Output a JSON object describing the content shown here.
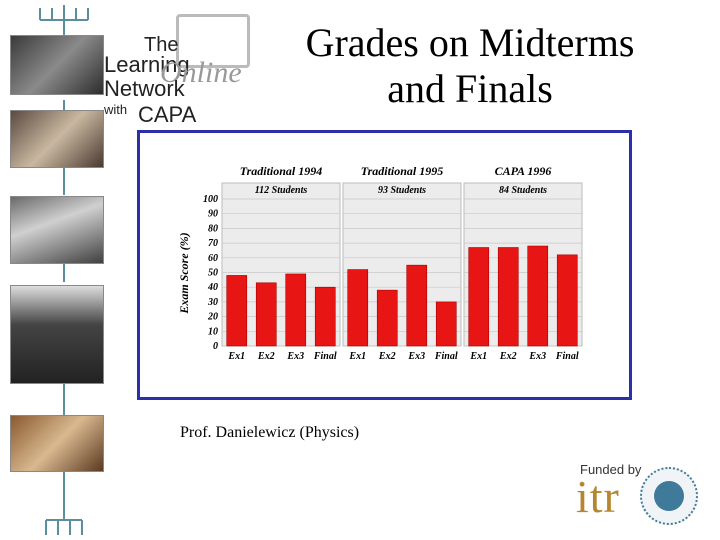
{
  "slide": {
    "title_line1": "Grades on Midterms",
    "title_line2": "and Finals",
    "caption": "Prof. Danielewicz (Physics)"
  },
  "logo": {
    "the": "The",
    "learning": "Learning",
    "online": "Online",
    "network": "Network",
    "with": "with",
    "capa": "CAPA"
  },
  "funder": {
    "funded_by": "Funded by",
    "itr": "itr",
    "nsf_ring": "NATIONAL SCIENCE FOUNDATION"
  },
  "colors": {
    "bar": "#e81515",
    "panel": "#ececec",
    "border": "#2b2fa8",
    "accent": "#b5862f"
  },
  "chart_data": {
    "type": "bar",
    "ylabel": "Exam Score (%)",
    "ylim": [
      0,
      100
    ],
    "yticks": [
      "0",
      "10",
      "20",
      "30",
      "40",
      "50",
      "60",
      "70",
      "80",
      "90",
      "100"
    ],
    "grid": true,
    "panels": [
      {
        "title": "Traditional 1994",
        "subtitle": "112 Students",
        "categories": [
          "Ex1",
          "Ex2",
          "Ex3",
          "Final"
        ],
        "values": [
          48,
          43,
          49,
          40
        ]
      },
      {
        "title": "Traditional 1995",
        "subtitle": "93 Students",
        "categories": [
          "Ex1",
          "Ex2",
          "Ex3",
          "Final"
        ],
        "values": [
          52,
          38,
          55,
          30
        ]
      },
      {
        "title": "CAPA 1996",
        "subtitle": "84 Students",
        "categories": [
          "Ex1",
          "Ex2",
          "Ex3",
          "Final"
        ],
        "values": [
          67,
          67,
          68,
          62
        ]
      }
    ]
  }
}
